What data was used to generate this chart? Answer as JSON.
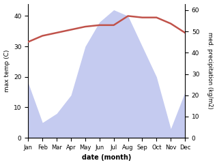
{
  "months": [
    "Jan",
    "Feb",
    "Mar",
    "Apr",
    "May",
    "Jun",
    "Jul",
    "Aug",
    "Sep",
    "Oct",
    "Nov",
    "Dec"
  ],
  "month_indices": [
    1,
    2,
    3,
    4,
    5,
    6,
    7,
    8,
    9,
    10,
    11,
    12
  ],
  "temperature": [
    31.5,
    33.5,
    34.5,
    35.5,
    36.5,
    37.0,
    37.0,
    40.0,
    39.5,
    39.5,
    37.5,
    34.5
  ],
  "precipitation_left_scale": [
    18,
    5,
    8,
    14,
    30,
    38,
    42,
    40,
    30,
    20,
    3,
    15
  ],
  "precip_fill_color": "#c5cbf0",
  "temp_color": "#c0524a",
  "temp_ylim": [
    0,
    44
  ],
  "precip_ylim": [
    0,
    63
  ],
  "temp_yticks": [
    0,
    10,
    20,
    30,
    40
  ],
  "precip_yticks": [
    0,
    10,
    20,
    30,
    40,
    50,
    60
  ],
  "ylabel_left": "max temp (C)",
  "ylabel_right": "med. precipitation (kg/m2)",
  "xlabel": "date (month)",
  "background_color": "#ffffff"
}
